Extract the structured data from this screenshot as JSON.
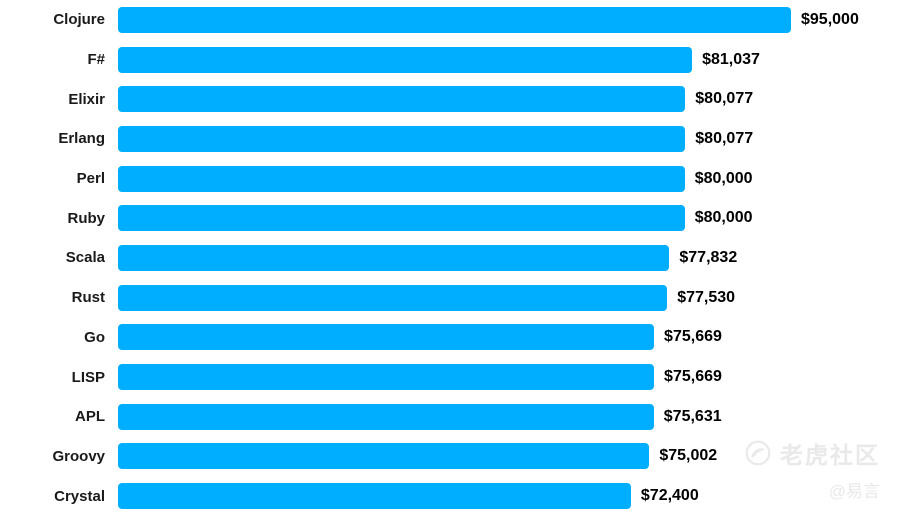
{
  "chart_data": {
    "type": "bar",
    "orientation": "horizontal",
    "categories": [
      "Clojure",
      "F#",
      "Elixir",
      "Erlang",
      "Perl",
      "Ruby",
      "Scala",
      "Rust",
      "Go",
      "LISP",
      "APL",
      "Groovy",
      "Crystal"
    ],
    "values": [
      95000,
      81037,
      80077,
      80077,
      80000,
      80000,
      77832,
      77530,
      75669,
      75669,
      75631,
      75002,
      72400
    ],
    "value_labels": [
      "$95,000",
      "$81,037",
      "$80,077",
      "$80,077",
      "$80,000",
      "$80,000",
      "$77,832",
      "$77,530",
      "$75,669",
      "$75,669",
      "$75,631",
      "$75,002",
      "$72,400"
    ],
    "title": "",
    "xlabel": "",
    "ylabel": "",
    "xlim": [
      0,
      95000
    ],
    "grid": false,
    "legend": false,
    "bar_color": "#00AEFF",
    "label_color": "#1a1a1a",
    "value_color": "#000000"
  },
  "watermark": {
    "brand": "老虎社区",
    "author": "@易言",
    "icon": "tiger-logo-icon",
    "color": "#e9e9e9"
  }
}
